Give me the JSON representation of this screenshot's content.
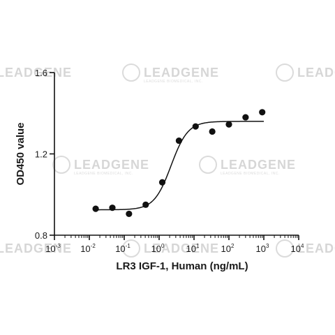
{
  "watermark": {
    "name": "LEADGENE",
    "sub": "LEADGENE BIOMEDICAL, INC."
  },
  "chart_data": {
    "type": "scatter",
    "title": "",
    "xlabel": "LR3 IGF-1, Human (ng/mL)",
    "ylabel": "OD450 value",
    "xscale": "log",
    "xlim": [
      0.001,
      10000
    ],
    "ylim": [
      0.8,
      1.6
    ],
    "x_ticks": [
      {
        "value": 0.001,
        "base": "10",
        "exp": "-3"
      },
      {
        "value": 0.01,
        "base": "10",
        "exp": "-2"
      },
      {
        "value": 0.1,
        "base": "10",
        "exp": "-1"
      },
      {
        "value": 1,
        "base": "10",
        "exp": "0"
      },
      {
        "value": 10,
        "base": "10",
        "exp": "1"
      },
      {
        "value": 100,
        "base": "10",
        "exp": "2"
      },
      {
        "value": 1000,
        "base": "10",
        "exp": "3"
      },
      {
        "value": 10000,
        "base": "10",
        "exp": "4"
      }
    ],
    "y_ticks": [
      {
        "value": 0.8,
        "label": "0.8"
      },
      {
        "value": 1.2,
        "label": "1.2"
      },
      {
        "value": 1.6,
        "label": "1.6"
      }
    ],
    "grid": false,
    "series": [
      {
        "points": [
          {
            "x": 0.0152,
            "y": 0.93
          },
          {
            "x": 0.0457,
            "y": 0.935
          },
          {
            "x": 0.137,
            "y": 0.905
          },
          {
            "x": 0.412,
            "y": 0.95
          },
          {
            "x": 1.23,
            "y": 1.06
          },
          {
            "x": 3.7,
            "y": 1.265
          },
          {
            "x": 11.1,
            "y": 1.335
          },
          {
            "x": 33.3,
            "y": 1.31
          },
          {
            "x": 100,
            "y": 1.345
          },
          {
            "x": 300,
            "y": 1.38
          },
          {
            "x": 900,
            "y": 1.405
          }
        ],
        "fit": {
          "model": "4PL",
          "bottom": 0.925,
          "top": 1.36,
          "ec50": 2.2,
          "hill": 1.8,
          "x_range": [
            0.015,
            1000
          ]
        }
      }
    ]
  }
}
